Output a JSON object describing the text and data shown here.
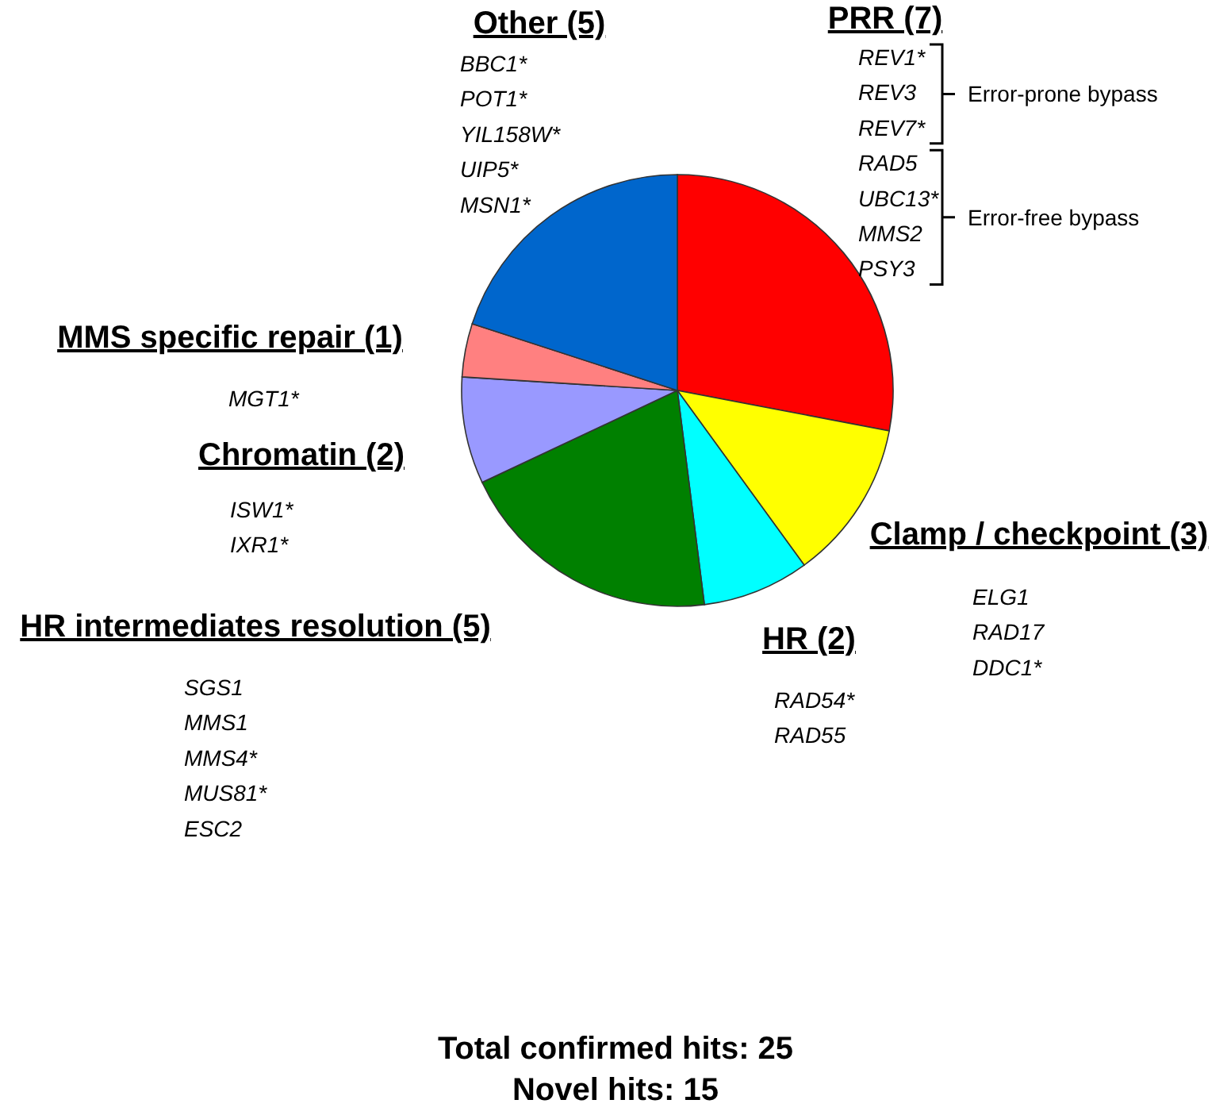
{
  "chart_data": {
    "type": "pie",
    "categories": [
      "PRR (7)",
      "Clamp / checkpoint (3)",
      "HR (2)",
      "HR intermediates resolution (5)",
      "Chromatin (2)",
      "MMS specific repair (1)",
      "Other (5)"
    ],
    "values": [
      7,
      3,
      2,
      5,
      2,
      1,
      5
    ],
    "colors": [
      "#ff0000",
      "#ffff00",
      "#00ffff",
      "#008000",
      "#9999ff",
      "#ff8080",
      "#0066cc"
    ],
    "annotations": [
      "REV1*\nREV3\nREV7*\nRAD5\nUBC13*\nMMS2\nPSY3",
      "ELG1\nRAD17\nDDC1*",
      "RAD54*\nRAD55",
      "SGS1\nMMS1\nMMS4*\nMUS81*\nESC2",
      "ISW1*\nIXR1*",
      "MGT1*",
      "BBC1*\nPOT1*\nYIL158W*\nUIP5*\nMSN1*",
      "Error-prone bypass",
      "Error-free bypass",
      "Total confirmed hits: 25",
      "Novel hits: 15"
    ]
  }
}
